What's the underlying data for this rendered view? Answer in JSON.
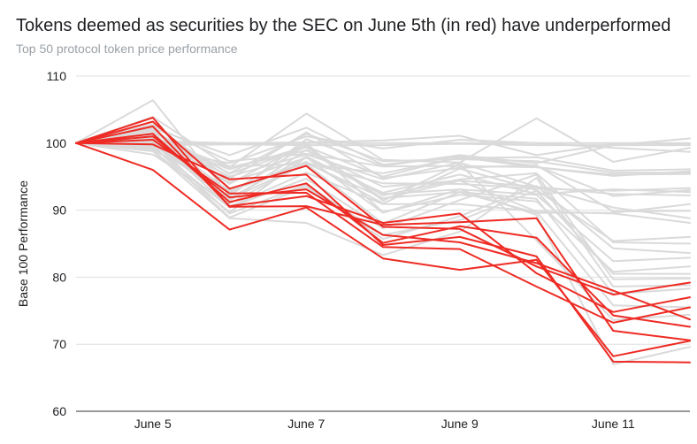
{
  "chart_data": {
    "type": "line",
    "title": "Tokens deemed as securities by the SEC on June 5th (in red) have underperformed",
    "subtitle": "Top 50 protocol token price performance",
    "ylabel": "Base 100 Performance",
    "xlabel": "",
    "ylim": [
      60,
      110
    ],
    "yticks": [
      60,
      70,
      80,
      90,
      100,
      110
    ],
    "x": [
      "June 4",
      "June 5",
      "June 6",
      "June 7",
      "June 8",
      "June 9",
      "June 10",
      "June 11",
      "June 12"
    ],
    "x_tick_labels": [
      "June 5",
      "June 7",
      "June 9",
      "June 11"
    ],
    "x_tick_values": [
      "June 5",
      "June 7",
      "June 9",
      "June 11"
    ],
    "grid": true,
    "colors": {
      "sec_security": "#ee2b24",
      "other": "#dadada",
      "grid": "#e0e0e0",
      "axis": "#333333"
    },
    "sec_series": [
      [
        100,
        103.8,
        90.5,
        90.6,
        87.8,
        88.2,
        88.8,
        72.0,
        70.6
      ],
      [
        100,
        96.0,
        87.1,
        90.4,
        82.8,
        81.1,
        82.6,
        68.2,
        70.5
      ],
      [
        100,
        103.2,
        93.2,
        96.6,
        87.5,
        87.2,
        81.6,
        77.4,
        79.2
      ],
      [
        100,
        101.4,
        91.2,
        94.0,
        85.1,
        87.6,
        85.9,
        74.3,
        72.6
      ],
      [
        100,
        100.5,
        92.5,
        92.6,
        84.5,
        84.2,
        78.6,
        73.2,
        75.5
      ],
      [
        100,
        102.5,
        90.6,
        92.1,
        88.1,
        89.5,
        80.6,
        74.8,
        77.0
      ],
      [
        100,
        99.8,
        94.6,
        95.3,
        84.8,
        86.0,
        83.1,
        67.4,
        67.3
      ],
      [
        100,
        101.0,
        91.9,
        93.1,
        86.3,
        85.2,
        82.1,
        78.0,
        73.7
      ]
    ],
    "other_series": [
      [
        100,
        106.4,
        92.1,
        100.6,
        96.6,
        98.2,
        97.0,
        99.7,
        100.7
      ],
      [
        100,
        103.9,
        96.4,
        104.4,
        97.5,
        97.1,
        103.7,
        97.2,
        99.3
      ],
      [
        100,
        100.0,
        99.9,
        100.0,
        100.0,
        100.0,
        100.0,
        100.0,
        100.0
      ],
      [
        100,
        99.7,
        99.8,
        99.7,
        99.7,
        99.9,
        99.7,
        99.7,
        99.7
      ],
      [
        100,
        100.3,
        100.0,
        100.1,
        100.4,
        101.1,
        98.2,
        99.9,
        99.9
      ],
      [
        100,
        101.6,
        95.5,
        101.4,
        97.3,
        97.6,
        97.3,
        95.6,
        95.6
      ],
      [
        100,
        102.6,
        97.3,
        98.4,
        96.5,
        96.6,
        96.4,
        95.3,
        95.4
      ],
      [
        100,
        100.5,
        96.1,
        99.5,
        95.0,
        97.9,
        96.4,
        95.1,
        95.8
      ],
      [
        100,
        101.2,
        92.8,
        97.1,
        94.0,
        93.9,
        93.2,
        92.9,
        93.3
      ],
      [
        100,
        102.0,
        94.2,
        97.8,
        92.6,
        95.3,
        92.4,
        93.1,
        92.7
      ],
      [
        100,
        99.3,
        96.4,
        98.9,
        93.5,
        94.4,
        93.5,
        92.4,
        92.2
      ],
      [
        100,
        98.3,
        91.0,
        97.0,
        91.8,
        92.7,
        89.6,
        89.6,
        90.9
      ],
      [
        100,
        101.0,
        95.0,
        98.3,
        94.6,
        97.1,
        93.5,
        90.4,
        88.8
      ],
      [
        100,
        100.8,
        90.5,
        95.6,
        90.9,
        90.9,
        89.8,
        89.5,
        88.1
      ],
      [
        100,
        99.0,
        93.0,
        97.2,
        91.0,
        96.2,
        93.0,
        85.4,
        86.0
      ],
      [
        100,
        100.2,
        91.4,
        99.0,
        92.2,
        94.6,
        95.5,
        85.2,
        85.0
      ],
      [
        100,
        99.6,
        88.9,
        93.5,
        85.7,
        89.1,
        93.6,
        84.3,
        83.6
      ],
      [
        100,
        98.9,
        89.7,
        97.9,
        89.6,
        93.1,
        92.3,
        82.4,
        82.9
      ],
      [
        100,
        101.3,
        93.9,
        100.0,
        89.7,
        92.3,
        91.3,
        80.8,
        81.6
      ],
      [
        100,
        100.1,
        89.5,
        93.8,
        86.3,
        88.5,
        92.9,
        80.5,
        80.5
      ],
      [
        100,
        99.4,
        90.4,
        94.7,
        87.3,
        91.5,
        95.3,
        79.7,
        79.8
      ],
      [
        100,
        98.8,
        88.8,
        88.1,
        83.3,
        86.8,
        94.8,
        78.6,
        78.8
      ],
      [
        100,
        99.8,
        91.7,
        96.9,
        88.0,
        92.7,
        91.7,
        77.5,
        78.3
      ],
      [
        100,
        101.9,
        95.4,
        99.4,
        91.7,
        94.4,
        89.8,
        75.8,
        75.5
      ],
      [
        100,
        100.0,
        92.5,
        99.7,
        91.4,
        96.9,
        85.5,
        73.6,
        74.4
      ],
      [
        100,
        100.7,
        96.5,
        96.9,
        95.5,
        97.8,
        97.9,
        95.9,
        96.1
      ],
      [
        100,
        102.2,
        98.2,
        102.3,
        96.8,
        98.0,
        96.6,
        92.1,
        93.0
      ],
      [
        100,
        99.1,
        97.0,
        101.0,
        99.2,
        100.5,
        100.0,
        99.3,
        98.7
      ],
      [
        100,
        100.4,
        91.8,
        98.0,
        92.4,
        93.1,
        89.3,
        67.0,
        69.6
      ],
      [
        100,
        102.8,
        94.7,
        101.6,
        94.8,
        96.3,
        96.7,
        89.8,
        89.9
      ]
    ]
  }
}
